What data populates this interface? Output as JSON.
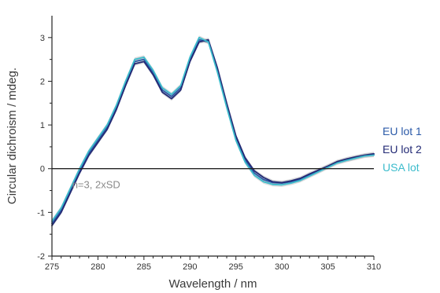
{
  "chart_data": {
    "type": "line",
    "xlabel": "Wavelength / nm",
    "ylabel": "Circular dichroism / mdeg.",
    "xlim": [
      275,
      310
    ],
    "ylim": [
      -2,
      3.5
    ],
    "xticks": [
      275,
      280,
      285,
      290,
      295,
      300,
      305,
      310
    ],
    "yticks": [
      -2,
      -1,
      0,
      1,
      2,
      3
    ],
    "annotation": "n=3, 2xSD",
    "series": [
      {
        "name": "EU lot 1",
        "color": "#2b5aa8",
        "x": [
          275,
          276,
          277,
          278,
          279,
          280,
          281,
          282,
          283,
          284,
          285,
          286,
          287,
          288,
          289,
          290,
          291,
          292,
          293,
          294,
          295,
          296,
          297,
          298,
          299,
          300,
          301,
          302,
          303,
          304,
          305,
          306,
          307,
          308,
          309,
          310
        ],
        "y": [
          -1.25,
          -0.95,
          -0.5,
          -0.05,
          0.35,
          0.65,
          0.95,
          1.4,
          1.95,
          2.45,
          2.5,
          2.2,
          1.8,
          1.65,
          1.85,
          2.5,
          2.95,
          2.9,
          2.25,
          1.45,
          0.7,
          0.2,
          -0.1,
          -0.25,
          -0.32,
          -0.33,
          -0.3,
          -0.25,
          -0.15,
          -0.05,
          0.05,
          0.15,
          0.2,
          0.25,
          0.3,
          0.32
        ]
      },
      {
        "name": "EU lot 2",
        "color": "#232a75",
        "x": [
          275,
          276,
          277,
          278,
          279,
          280,
          281,
          282,
          283,
          284,
          285,
          286,
          287,
          288,
          289,
          290,
          291,
          292,
          293,
          294,
          295,
          296,
          297,
          298,
          299,
          300,
          301,
          302,
          303,
          304,
          305,
          306,
          307,
          308,
          309,
          310
        ],
        "y": [
          -1.3,
          -1.0,
          -0.55,
          -0.1,
          0.3,
          0.6,
          0.9,
          1.35,
          1.9,
          2.4,
          2.45,
          2.15,
          1.75,
          1.6,
          1.8,
          2.45,
          2.9,
          2.95,
          2.3,
          1.5,
          0.75,
          0.25,
          -0.05,
          -0.2,
          -0.3,
          -0.32,
          -0.28,
          -0.22,
          -0.12,
          -0.03,
          0.06,
          0.16,
          0.22,
          0.27,
          0.31,
          0.34
        ]
      },
      {
        "name": "USA lot",
        "color": "#3cbccc",
        "x": [
          275,
          276,
          277,
          278,
          279,
          280,
          281,
          282,
          283,
          284,
          285,
          286,
          287,
          288,
          289,
          290,
          291,
          292,
          293,
          294,
          295,
          296,
          297,
          298,
          299,
          300,
          301,
          302,
          303,
          304,
          305,
          306,
          307,
          308,
          309,
          310
        ],
        "y": [
          -1.2,
          -0.9,
          -0.45,
          0.0,
          0.4,
          0.7,
          1.0,
          1.45,
          2.0,
          2.5,
          2.55,
          2.25,
          1.85,
          1.7,
          1.9,
          2.55,
          3.0,
          2.9,
          2.2,
          1.4,
          0.65,
          0.15,
          -0.15,
          -0.3,
          -0.36,
          -0.37,
          -0.33,
          -0.27,
          -0.17,
          -0.07,
          0.03,
          0.13,
          0.19,
          0.24,
          0.29,
          0.31
        ]
      }
    ]
  }
}
